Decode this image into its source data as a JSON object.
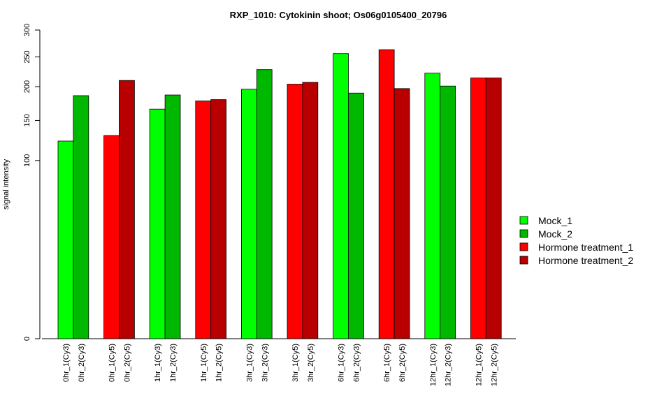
{
  "chart_data": {
    "type": "bar",
    "title": "RXP_1010: Cytokinin shoot; Os06g0105400_20796",
    "xlabel": "",
    "ylabel": "signal intensity",
    "ylim": [
      0,
      300
    ],
    "y_scale": "sqrt",
    "y_ticks": [
      0,
      100,
      150,
      200,
      250,
      300
    ],
    "categories": [
      "0hr_1(Cy3)",
      "0hr_2(Cy3)",
      "0hr_1(Cy5)",
      "0hr_2(Cy5)",
      "1hr_1(Cy3)",
      "1hr_2(Cy3)",
      "1hr_1(Cy5)",
      "1hr_2(Cy5)",
      "3hr_1(Cy3)",
      "3hr_2(Cy3)",
      "3hr_1(Cy5)",
      "3hr_2(Cy5)",
      "6hr_1(Cy3)",
      "6hr_2(Cy3)",
      "6hr_1(Cy5)",
      "6hr_2(Cy5)",
      "12hr_1(Cy3)",
      "12hr_2(Cy3)",
      "12hr_1(Cy5)",
      "12hr_2(Cy5)"
    ],
    "values": [
      123,
      186,
      130,
      210,
      166,
      187,
      178,
      180,
      196,
      228,
      204,
      207,
      256,
      190,
      263,
      197,
      222,
      201,
      214,
      214
    ],
    "series_index": [
      0,
      1,
      2,
      3,
      0,
      1,
      2,
      3,
      0,
      1,
      2,
      3,
      0,
      1,
      2,
      3,
      0,
      1,
      2,
      3
    ],
    "series": [
      {
        "name": "Mock_1",
        "color": "#00ff00"
      },
      {
        "name": "Mock_2",
        "color": "#00b800"
      },
      {
        "name": "Hormone treatment_1",
        "color": "#ff0000"
      },
      {
        "name": "Hormone treatment_2",
        "color": "#b80000"
      }
    ],
    "legend_position": "right",
    "grid": false
  }
}
